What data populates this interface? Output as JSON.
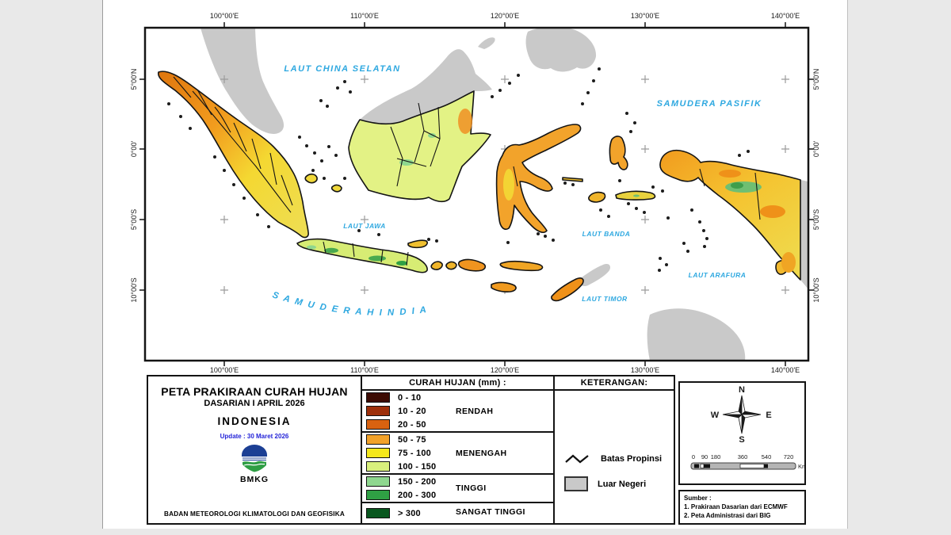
{
  "map": {
    "lon_labels": [
      "100°00'E",
      "110°00'E",
      "120°00'E",
      "130°00'E",
      "140°00'E"
    ],
    "lat_labels": [
      "5°00'N",
      "0°00'",
      "5°00'S",
      "10°00'S"
    ],
    "sea_labels": {
      "china": "LAUT CHINA SELATAN",
      "pasifik": "SAMUDERA PASIFIK",
      "jawa": "LAUT JAWA",
      "banda": "LAUT BANDA",
      "arafura": "LAUT ARAFURA",
      "timor": "LAUT TIMOR",
      "hindia": "S A M U D E R A   H I N D I A"
    },
    "colors": {
      "sea_label": "#2ea8e0",
      "foreign_land": "#c9c9c9",
      "graticule": "#9b9b9b"
    }
  },
  "title_block": {
    "line1": "PETA PRAKIRAAN CURAH HUJAN",
    "line2": "DASARIAN I APRIL 2026",
    "line3": "INDONESIA",
    "update": "Update : 30 Maret 2026",
    "logo_label": "BMKG",
    "footer": "BADAN METEOROLOGI KLIMATOLOGI DAN GEOFISIKA"
  },
  "legend": {
    "header": "CURAH HUJAN (mm) :",
    "classes": [
      {
        "range": "0 - 10",
        "color": "#3c0b03",
        "group": "RENDAH"
      },
      {
        "range": "10 - 20",
        "color": "#9e2f0a",
        "group": "RENDAH"
      },
      {
        "range": "20 - 50",
        "color": "#d96210",
        "group": "RENDAH"
      },
      {
        "range": "50 - 75",
        "color": "#f2a22a",
        "group": "MENENGAH"
      },
      {
        "range": "75 - 100",
        "color": "#f5e81c",
        "group": "MENENGAH"
      },
      {
        "range": "100 - 150",
        "color": "#d9f07d",
        "group": "MENENGAH"
      },
      {
        "range": "150 - 200",
        "color": "#8fd78f",
        "group": "TINGGI"
      },
      {
        "range": "200 - 300",
        "color": "#2fa044",
        "group": "TINGGI"
      },
      {
        "range": "> 300",
        "color": "#09571f",
        "group": "SANGAT TINGGI"
      }
    ],
    "group_labels": [
      "RENDAH",
      "MENENGAH",
      "TINGGI",
      "SANGAT TINGGI"
    ]
  },
  "keterangan": {
    "header": "KETERANGAN:",
    "items": [
      {
        "label": "Batas Propinsi"
      },
      {
        "label": "Luar Negeri"
      }
    ]
  },
  "compass": {
    "north": "N",
    "east": "E",
    "west": "W",
    "south": "S"
  },
  "scale_bar": {
    "ticks": [
      "0",
      "90",
      "180",
      "360",
      "540",
      "720"
    ],
    "unit": "Km"
  },
  "sumber": {
    "title": "Sumber :",
    "line1": "1. Prakiraan Dasarian dari ECMWF",
    "line2": "2. Peta Administrasi dari BIG"
  }
}
